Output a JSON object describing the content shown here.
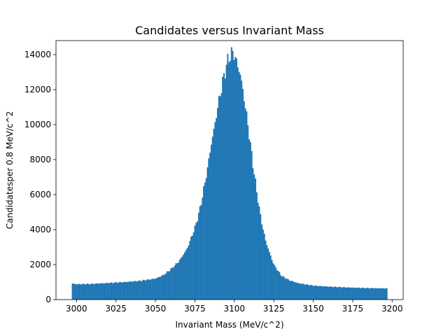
{
  "chart_data": {
    "type": "bar",
    "title": "Candidates versus Invariant Mass",
    "xlabel": "Invariant Mass (MeV/c^2)",
    "ylabel": "Candidatesper 0.8 MeV/c^2",
    "xlim": [
      2987,
      3207
    ],
    "ylim": [
      0,
      14800
    ],
    "xticks": [
      3000,
      3025,
      3050,
      3075,
      3100,
      3125,
      3150,
      3175,
      3200
    ],
    "yticks": [
      0,
      2000,
      4000,
      6000,
      8000,
      10000,
      12000,
      14000
    ],
    "bin_range": [
      2997,
      3197
    ],
    "bin_width": 0.8,
    "bin_count": 250,
    "bar_color": "#1f77b4",
    "grid": false,
    "legend": "none",
    "bins": {
      "x": [
        2997,
        3000,
        3010,
        3020,
        3030,
        3040,
        3050,
        3055,
        3060,
        3065,
        3070,
        3075,
        3078,
        3080,
        3083,
        3085,
        3088,
        3090,
        3093,
        3095,
        3097,
        3098,
        3099,
        3100,
        3102,
        3104,
        3106,
        3108,
        3110,
        3112,
        3114,
        3116,
        3118,
        3120,
        3123,
        3125,
        3128,
        3130,
        3135,
        3140,
        3145,
        3150,
        3160,
        3170,
        3180,
        3190,
        3197
      ],
      "y": [
        920,
        880,
        900,
        950,
        1000,
        1070,
        1200,
        1400,
        1750,
        2200,
        2900,
        4100,
        5100,
        6000,
        7500,
        8700,
        10200,
        11300,
        12600,
        13400,
        13900,
        14050,
        14100,
        14000,
        13400,
        12800,
        11600,
        10400,
        9000,
        7600,
        6300,
        5100,
        4100,
        3300,
        2500,
        2000,
        1600,
        1350,
        1100,
        950,
        870,
        800,
        740,
        700,
        670,
        650,
        640
      ]
    }
  }
}
